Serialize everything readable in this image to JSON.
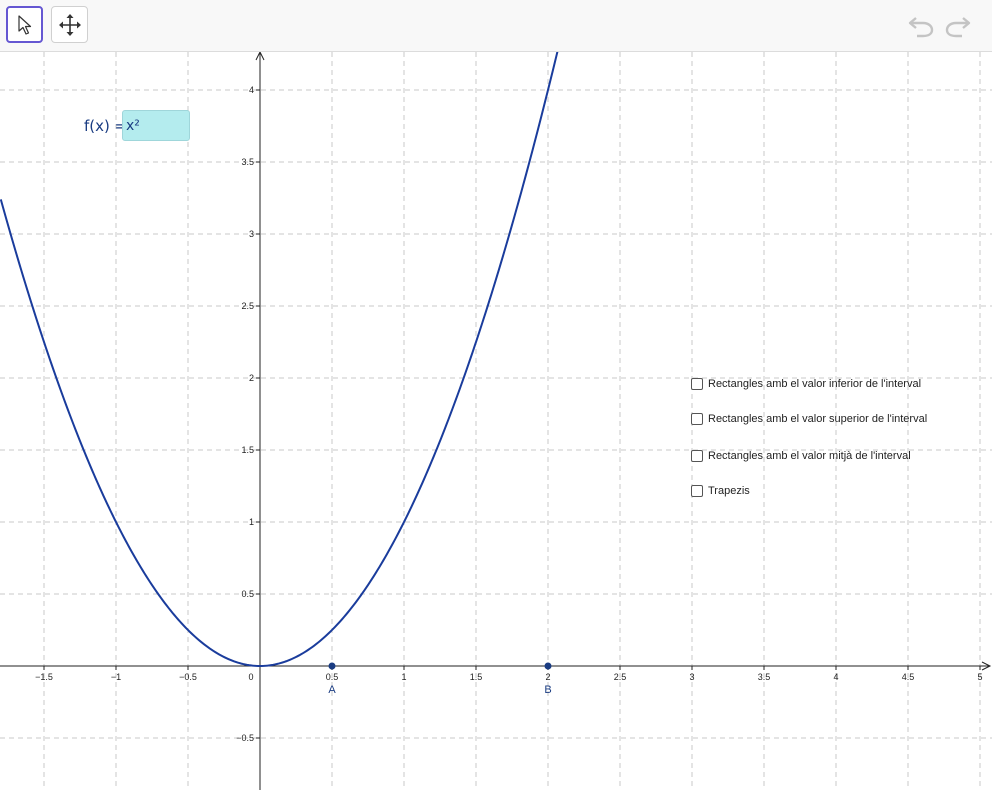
{
  "toolbar": {
    "tools": [
      {
        "name": "move",
        "icon": "cursor-arrow-icon",
        "selected": true
      },
      {
        "name": "move-graphics-view",
        "icon": "move-arrows-icon",
        "selected": false
      }
    ],
    "undo_icon": "undo-icon",
    "redo_icon": "redo-icon"
  },
  "function_input": {
    "label": "f(x) =",
    "value": "x²",
    "accent": "#b4ecee"
  },
  "checkboxes": [
    {
      "label": "Rectangles amb el valor inferior de l'interval",
      "checked": false
    },
    {
      "label": "Rectangles amb el valor superior de l'interval",
      "checked": false
    },
    {
      "label": "Rectangles amb el valor mitjà de l'interval",
      "checked": false
    },
    {
      "label": "Trapezis",
      "checked": false
    }
  ],
  "chart_data": {
    "type": "line",
    "series": [
      {
        "function": "x^2",
        "color": "#1a3c9c"
      }
    ],
    "xlim": [
      -1.8,
      5.05
    ],
    "ylim": [
      -0.85,
      4.3
    ],
    "x_ticks": [
      "-1.5",
      "-1",
      "-0.5",
      "0",
      "0.5",
      "1",
      "1.5",
      "2",
      "2.5",
      "3",
      "3.5",
      "4",
      "4.5",
      "5"
    ],
    "y_ticks": [
      "4",
      "3.5",
      "3",
      "2.5",
      "2",
      "1.5",
      "1",
      "0.5",
      "-0.5"
    ],
    "grid": true,
    "points": [
      {
        "label": "A",
        "x": 0.5,
        "y": 0
      },
      {
        "label": "B",
        "x": 2,
        "y": 0
      }
    ]
  }
}
